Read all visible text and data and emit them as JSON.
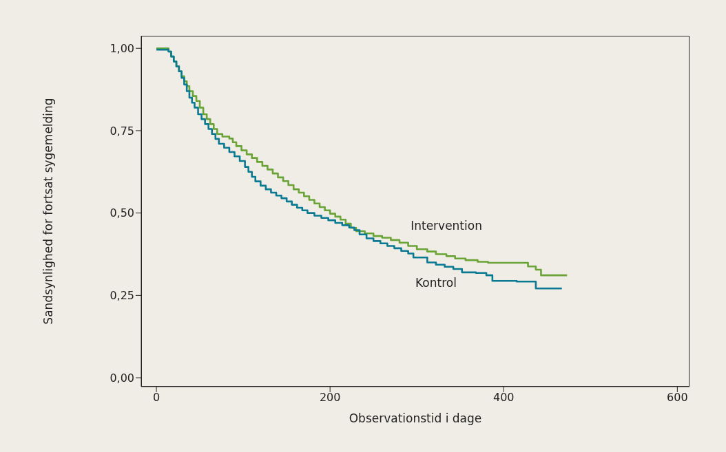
{
  "chart_data": {
    "type": "step",
    "xlabel": "Observationstid i dage",
    "ylabel": "Sandsynlighed for fortsat sygemelding",
    "xlim": [
      -17.5,
      614
    ],
    "xticks": [
      0,
      200,
      400,
      600
    ],
    "ylim": [
      -0.027,
      1.038
    ],
    "yticks": [
      {
        "value": 0,
        "label": "0,00"
      },
      {
        "value": 0.25,
        "label": "0,25"
      },
      {
        "value": 0.5,
        "label": "0,50"
      },
      {
        "value": 0.75,
        "label": "0,75"
      },
      {
        "value": 1,
        "label": "1,00"
      }
    ],
    "series": [
      {
        "name": "Intervention",
        "color": "#6aa336",
        "x": [
          0,
          12,
          14,
          17,
          20,
          23,
          26,
          29,
          32,
          35,
          38,
          42,
          46,
          50,
          54,
          58,
          62,
          66,
          70,
          76,
          84,
          88,
          92,
          98,
          104,
          110,
          116,
          122,
          128,
          134,
          140,
          146,
          152,
          158,
          164,
          170,
          176,
          182,
          188,
          194,
          200,
          206,
          212,
          218,
          224,
          230,
          240,
          250,
          260,
          270,
          280,
          290,
          300,
          312,
          322,
          334,
          344,
          356,
          370,
          382,
          425,
          428,
          437,
          443,
          473
        ],
        "values": [
          1.0,
          1.0,
          0.99,
          0.975,
          0.96,
          0.945,
          0.93,
          0.915,
          0.9,
          0.885,
          0.87,
          0.855,
          0.84,
          0.82,
          0.8,
          0.785,
          0.77,
          0.755,
          0.74,
          0.732,
          0.726,
          0.715,
          0.703,
          0.69,
          0.678,
          0.667,
          0.655,
          0.643,
          0.632,
          0.62,
          0.608,
          0.597,
          0.585,
          0.572,
          0.562,
          0.551,
          0.54,
          0.529,
          0.518,
          0.508,
          0.498,
          0.489,
          0.48,
          0.468,
          0.455,
          0.445,
          0.438,
          0.43,
          0.425,
          0.418,
          0.41,
          0.4,
          0.39,
          0.383,
          0.375,
          0.369,
          0.362,
          0.357,
          0.352,
          0.349,
          0.349,
          0.338,
          0.328,
          0.311,
          0.311
        ]
      },
      {
        "name": "Kontrol",
        "color": "#0a7a92",
        "x": [
          0,
          10,
          14,
          17,
          20,
          23,
          26,
          29,
          32,
          35,
          38,
          41,
          44,
          48,
          52,
          56,
          60,
          64,
          68,
          72,
          78,
          84,
          90,
          96,
          102,
          106,
          110,
          114,
          120,
          126,
          132,
          138,
          144,
          150,
          156,
          162,
          168,
          174,
          182,
          190,
          198,
          206,
          214,
          222,
          228,
          234,
          242,
          250,
          258,
          266,
          274,
          282,
          290,
          296,
          310,
          312,
          322,
          332,
          342,
          352,
          368,
          380,
          387,
          415,
          437,
          467
        ],
        "values": [
          0.996,
          0.996,
          0.99,
          0.975,
          0.96,
          0.945,
          0.93,
          0.91,
          0.89,
          0.87,
          0.85,
          0.835,
          0.82,
          0.8,
          0.785,
          0.77,
          0.755,
          0.74,
          0.725,
          0.71,
          0.698,
          0.685,
          0.672,
          0.658,
          0.64,
          0.625,
          0.61,
          0.596,
          0.583,
          0.572,
          0.562,
          0.553,
          0.545,
          0.535,
          0.525,
          0.516,
          0.508,
          0.5,
          0.492,
          0.485,
          0.478,
          0.47,
          0.463,
          0.456,
          0.448,
          0.435,
          0.423,
          0.415,
          0.408,
          0.4,
          0.393,
          0.385,
          0.377,
          0.365,
          0.365,
          0.35,
          0.343,
          0.337,
          0.33,
          0.32,
          0.318,
          0.311,
          0.294,
          0.292,
          0.271,
          0.271
        ]
      }
    ]
  }
}
